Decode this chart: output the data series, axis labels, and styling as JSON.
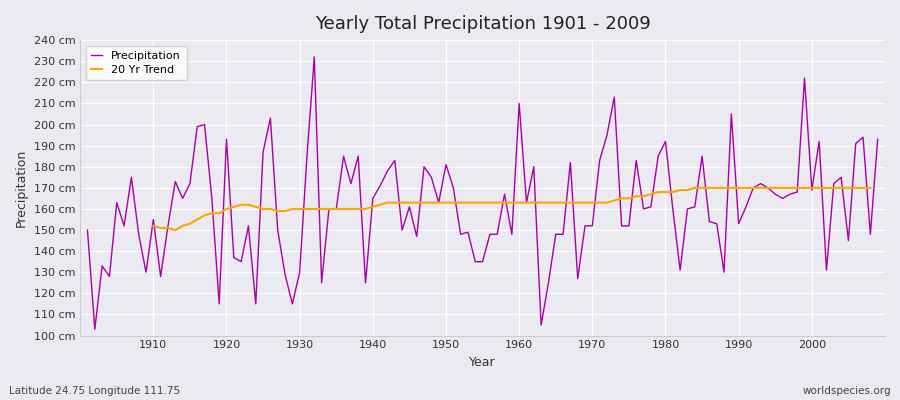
{
  "title": "Yearly Total Precipitation 1901 - 2009",
  "xlabel": "Year",
  "ylabel": "Precipitation",
  "subtitle": "Latitude 24.75 Longitude 111.75",
  "watermark": "worldspecies.org",
  "line_color": "#AA00AA",
  "trend_color": "#FFA500",
  "background_color": "#EAEAF0",
  "grid_color": "#FFFFFF",
  "ylim": [
    100,
    240
  ],
  "ytick_step": 10,
  "years": [
    1901,
    1902,
    1903,
    1904,
    1905,
    1906,
    1907,
    1908,
    1909,
    1910,
    1911,
    1912,
    1913,
    1914,
    1915,
    1916,
    1917,
    1918,
    1919,
    1920,
    1921,
    1922,
    1923,
    1924,
    1925,
    1926,
    1927,
    1928,
    1929,
    1930,
    1931,
    1932,
    1933,
    1934,
    1935,
    1936,
    1937,
    1938,
    1939,
    1940,
    1941,
    1942,
    1943,
    1944,
    1945,
    1946,
    1947,
    1948,
    1949,
    1950,
    1951,
    1952,
    1953,
    1954,
    1955,
    1956,
    1957,
    1958,
    1959,
    1960,
    1961,
    1962,
    1963,
    1964,
    1965,
    1966,
    1967,
    1968,
    1969,
    1970,
    1971,
    1972,
    1973,
    1974,
    1975,
    1976,
    1977,
    1978,
    1979,
    1980,
    1981,
    1982,
    1983,
    1984,
    1985,
    1986,
    1987,
    1988,
    1989,
    1990,
    1991,
    1992,
    1993,
    1994,
    1995,
    1996,
    1997,
    1998,
    1999,
    2000,
    2001,
    2002,
    2003,
    2004,
    2005,
    2006,
    2007,
    2008,
    2009
  ],
  "precipitation": [
    150,
    103,
    133,
    128,
    163,
    152,
    175,
    148,
    130,
    155,
    128,
    152,
    173,
    165,
    172,
    199,
    200,
    165,
    115,
    193,
    137,
    135,
    152,
    115,
    187,
    203,
    150,
    129,
    115,
    130,
    185,
    232,
    125,
    160,
    160,
    185,
    172,
    185,
    125,
    165,
    171,
    178,
    183,
    150,
    161,
    147,
    180,
    175,
    163,
    181,
    170,
    148,
    149,
    135,
    135,
    148,
    148,
    167,
    148,
    210,
    163,
    180,
    105,
    125,
    148,
    148,
    182,
    127,
    152,
    152,
    183,
    195,
    213,
    152,
    152,
    183,
    160,
    161,
    185,
    192,
    160,
    131,
    160,
    161,
    185,
    154,
    153,
    130,
    205,
    153,
    161,
    170,
    172,
    170,
    167,
    165,
    167,
    168,
    222,
    169,
    192,
    131,
    172,
    175,
    145,
    191,
    194,
    148,
    193
  ],
  "trend_years": [
    1910,
    1911,
    1912,
    1913,
    1914,
    1915,
    1916,
    1917,
    1918,
    1919,
    1920,
    1921,
    1922,
    1923,
    1924,
    1925,
    1926,
    1927,
    1928,
    1929,
    1930,
    1931,
    1932,
    1933,
    1934,
    1935,
    1936,
    1937,
    1938,
    1939,
    1940,
    1941,
    1942,
    1943,
    1944,
    1945,
    1946,
    1947,
    1948,
    1949,
    1950,
    1951,
    1952,
    1953,
    1954,
    1955,
    1956,
    1957,
    1958,
    1959,
    1960,
    1961,
    1962,
    1963,
    1964,
    1965,
    1966,
    1967,
    1968,
    1969,
    1970,
    1971,
    1972,
    1973,
    1974,
    1975,
    1976,
    1977,
    1978,
    1979,
    1980,
    1981,
    1982,
    1983,
    1984,
    1985,
    1986,
    1987,
    1988,
    1989,
    1990,
    1991,
    1992,
    1993,
    1994,
    1995,
    1996,
    1997,
    1998,
    1999,
    2000,
    2001,
    2002,
    2003,
    2004,
    2005,
    2006,
    2007,
    2008,
    2009
  ],
  "trend": [
    152,
    151,
    151,
    150,
    152,
    153,
    155,
    157,
    158,
    158,
    160,
    161,
    162,
    162,
    161,
    160,
    160,
    159,
    159,
    160,
    160,
    160,
    160,
    160,
    160,
    160,
    160,
    160,
    160,
    160,
    161,
    162,
    163,
    163,
    163,
    163,
    163,
    163,
    163,
    163,
    163,
    163,
    163,
    163,
    163,
    163,
    163,
    163,
    163,
    163,
    163,
    163,
    163,
    163,
    163,
    163,
    163,
    163,
    163,
    163,
    163,
    163,
    163,
    164,
    165,
    165,
    166,
    166,
    167,
    168,
    168,
    168,
    169,
    169,
    170,
    170,
    170,
    170,
    170,
    170,
    170,
    170,
    170,
    170,
    170,
    170,
    170,
    170,
    170,
    170,
    170,
    170,
    170,
    170,
    170,
    170,
    170,
    170,
    170
  ]
}
